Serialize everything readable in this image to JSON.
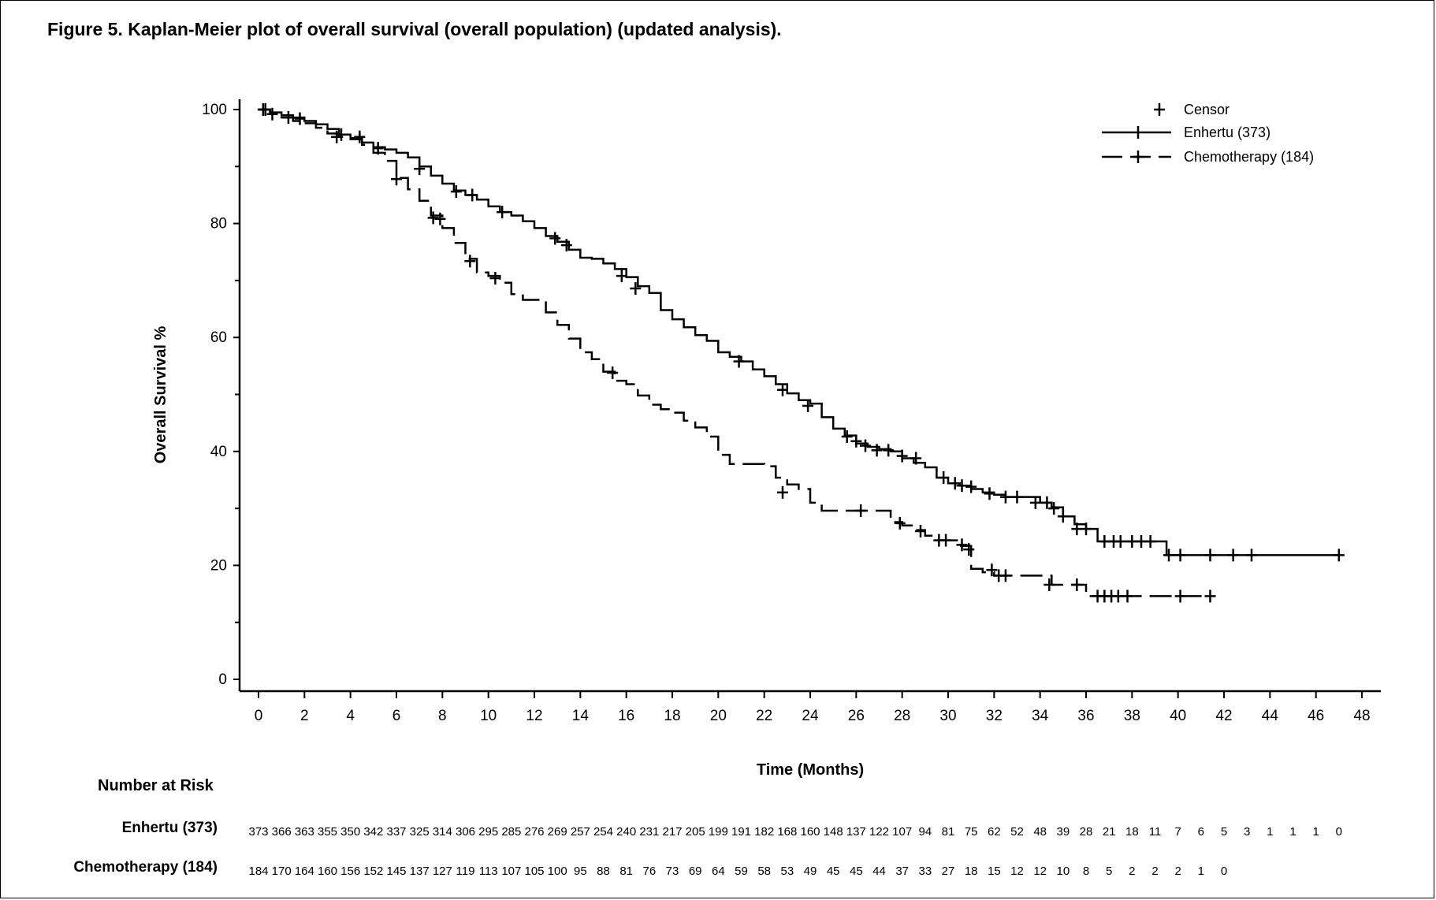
{
  "figure_title": "Figure 5. Kaplan-Meier plot of overall survival (overall population) (updated analysis).",
  "risk_table": {
    "header": "Number at Risk",
    "rows": [
      {
        "label": "Enhertu (373)",
        "values": [
          "373",
          "366",
          "363",
          "355",
          "350",
          "342",
          "337",
          "325",
          "314",
          "306",
          "295",
          "285",
          "276",
          "269",
          "257",
          "254",
          "240",
          "231",
          "217",
          "205",
          "199",
          "191",
          "182",
          "168",
          "160",
          "148",
          "137",
          "122",
          "107",
          "94",
          "81",
          "75",
          "62",
          "52",
          "48",
          "39",
          "28",
          "21",
          "18",
          "11",
          "7",
          "6",
          "5",
          "3",
          "1",
          "1",
          "1",
          "0"
        ]
      },
      {
        "label": "Chemotherapy (184)",
        "values": [
          "184",
          "170",
          "164",
          "160",
          "156",
          "152",
          "145",
          "137",
          "127",
          "119",
          "113",
          "107",
          "105",
          "100",
          "95",
          "88",
          "81",
          "76",
          "73",
          "69",
          "64",
          "59",
          "58",
          "53",
          "49",
          "45",
          "45",
          "44",
          "37",
          "33",
          "27",
          "18",
          "15",
          "12",
          "12",
          "10",
          "8",
          "5",
          "2",
          "2",
          "2",
          "1",
          "0"
        ]
      }
    ]
  },
  "chart_data": {
    "type": "line",
    "subtype": "kaplan-meier step plot",
    "title": "Figure 5. Kaplan-Meier plot of overall survival (overall population) (updated analysis).",
    "xlabel": "Time (Months)",
    "ylabel": "Overall Survival %",
    "xlim": [
      0,
      48
    ],
    "ylim": [
      0,
      100
    ],
    "x_ticks": [
      0,
      2,
      4,
      6,
      8,
      10,
      12,
      14,
      16,
      18,
      20,
      22,
      24,
      26,
      28,
      30,
      32,
      34,
      36,
      38,
      40,
      42,
      44,
      46,
      48
    ],
    "y_ticks": [
      0,
      20,
      40,
      60,
      80,
      100
    ],
    "y_minor_ticks": [
      10,
      30,
      50,
      70,
      90
    ],
    "grid": false,
    "legend": {
      "position": "top-right",
      "entries": [
        {
          "label": "Censor",
          "style": "marker"
        },
        {
          "label": "Enhertu (373)",
          "style": "solid"
        },
        {
          "label": "Chemotherapy (184)",
          "style": "dashed"
        }
      ]
    },
    "series": [
      {
        "name": "Enhertu (373)",
        "style": "solid",
        "points": [
          [
            0,
            100
          ],
          [
            0.5,
            99.5
          ],
          [
            1,
            99
          ],
          [
            1.5,
            98.6
          ],
          [
            2,
            98
          ],
          [
            2.5,
            97.4
          ],
          [
            3,
            96.6
          ],
          [
            3.5,
            95.6
          ],
          [
            4,
            95
          ],
          [
            4.5,
            94.2
          ],
          [
            5,
            93.4
          ],
          [
            5.5,
            93
          ],
          [
            6,
            92.4
          ],
          [
            6.5,
            91.6
          ],
          [
            7,
            90
          ],
          [
            7.5,
            88.4
          ],
          [
            8,
            87
          ],
          [
            8.5,
            85.8
          ],
          [
            9,
            85
          ],
          [
            9.5,
            84.2
          ],
          [
            10,
            83
          ],
          [
            10.5,
            82
          ],
          [
            11,
            81.4
          ],
          [
            11.5,
            80.4
          ],
          [
            12,
            79.2
          ],
          [
            12.5,
            77.8
          ],
          [
            13,
            76.8
          ],
          [
            13.5,
            75.4
          ],
          [
            14,
            74
          ],
          [
            14.5,
            73.8
          ],
          [
            15,
            73
          ],
          [
            15.5,
            72
          ],
          [
            16,
            70.6
          ],
          [
            16.5,
            69
          ],
          [
            17,
            67.8
          ],
          [
            17.5,
            64.8
          ],
          [
            18,
            63.2
          ],
          [
            18.5,
            61.8
          ],
          [
            19,
            60.4
          ],
          [
            19.5,
            59.4
          ],
          [
            20,
            57.4
          ],
          [
            20.5,
            56.6
          ],
          [
            21,
            55.8
          ],
          [
            21.5,
            54.4
          ],
          [
            22,
            53.2
          ],
          [
            22.5,
            51.8
          ],
          [
            23,
            50.2
          ],
          [
            23.5,
            49
          ],
          [
            24,
            48.4
          ],
          [
            24.5,
            46
          ],
          [
            25,
            44
          ],
          [
            25.5,
            42.8
          ],
          [
            26,
            41.4
          ],
          [
            26.5,
            40.8
          ],
          [
            27,
            40.4
          ],
          [
            27.5,
            40
          ],
          [
            28,
            38.8
          ],
          [
            28.5,
            38
          ],
          [
            29,
            37.2
          ],
          [
            29.5,
            35.4
          ],
          [
            30,
            34.4
          ],
          [
            30.5,
            34
          ],
          [
            31,
            33.4
          ],
          [
            31.5,
            32.8
          ],
          [
            32,
            32.4
          ],
          [
            32.5,
            32
          ],
          [
            33,
            32
          ],
          [
            33.5,
            32
          ],
          [
            34,
            31
          ],
          [
            34.5,
            30.2
          ],
          [
            35,
            28.6
          ],
          [
            35.5,
            27.2
          ],
          [
            36,
            26.4
          ],
          [
            36.5,
            24.2
          ],
          [
            37,
            24.2
          ],
          [
            38,
            24.2
          ],
          [
            39,
            24.2
          ],
          [
            39.5,
            21.8
          ],
          [
            40,
            21.8
          ],
          [
            42,
            21.8
          ],
          [
            44,
            21.8
          ],
          [
            46,
            21.8
          ],
          [
            47,
            21.8
          ]
        ],
        "censored": [
          [
            0.2,
            100
          ],
          [
            0.6,
            99.2
          ],
          [
            1.3,
            98.6
          ],
          [
            1.8,
            98.4
          ],
          [
            3.6,
            95.6
          ],
          [
            4.4,
            95.2
          ],
          [
            5.2,
            93.2
          ],
          [
            7,
            89.6
          ],
          [
            8.6,
            85.6
          ],
          [
            9.3,
            85
          ],
          [
            10.6,
            82
          ],
          [
            12.9,
            77.4
          ],
          [
            13.4,
            76.2
          ],
          [
            15.8,
            70.8
          ],
          [
            16.4,
            68.6
          ],
          [
            20.9,
            55.8
          ],
          [
            22.8,
            50.8
          ],
          [
            23.9,
            48
          ],
          [
            25.6,
            42.6
          ],
          [
            26,
            41.8
          ],
          [
            26.4,
            41
          ],
          [
            26.9,
            40.2
          ],
          [
            27.4,
            40.2
          ],
          [
            28,
            39.2
          ],
          [
            28.6,
            38.8
          ],
          [
            29.8,
            35.4
          ],
          [
            30.3,
            34.4
          ],
          [
            30.6,
            34
          ],
          [
            31,
            33.8
          ],
          [
            31.8,
            32.6
          ],
          [
            32.5,
            32
          ],
          [
            33,
            32
          ],
          [
            33.8,
            31
          ],
          [
            34.3,
            31
          ],
          [
            34.6,
            30
          ],
          [
            35,
            28.6
          ],
          [
            35.6,
            26.4
          ],
          [
            36,
            26.4
          ],
          [
            36.8,
            24.2
          ],
          [
            37.2,
            24.2
          ],
          [
            37.5,
            24.2
          ],
          [
            38,
            24.2
          ],
          [
            38.4,
            24.2
          ],
          [
            38.8,
            24.2
          ],
          [
            39.6,
            21.8
          ],
          [
            40.1,
            21.8
          ],
          [
            41.4,
            21.8
          ],
          [
            42.4,
            21.8
          ],
          [
            43.2,
            21.8
          ],
          [
            47,
            21.8
          ]
        ]
      },
      {
        "name": "Chemotherapy (184)",
        "style": "dashed",
        "points": [
          [
            0,
            100
          ],
          [
            0.5,
            99.4
          ],
          [
            1,
            98.6
          ],
          [
            1.5,
            98
          ],
          [
            2,
            97.6
          ],
          [
            2.5,
            96.8
          ],
          [
            3,
            95.8
          ],
          [
            3.5,
            95.2
          ],
          [
            4,
            94.8
          ],
          [
            4.5,
            93.8
          ],
          [
            5,
            92.4
          ],
          [
            5.5,
            91
          ],
          [
            6,
            88
          ],
          [
            6.5,
            86
          ],
          [
            7,
            84
          ],
          [
            7.5,
            81.4
          ],
          [
            8,
            79.2
          ],
          [
            8.5,
            76.6
          ],
          [
            9,
            73.8
          ],
          [
            9.5,
            71.4
          ],
          [
            10,
            70.8
          ],
          [
            10.5,
            69.6
          ],
          [
            11,
            67.6
          ],
          [
            11.5,
            66.6
          ],
          [
            12,
            66.6
          ],
          [
            12.5,
            64.4
          ],
          [
            13,
            62.2
          ],
          [
            13.5,
            59.8
          ],
          [
            14,
            57.4
          ],
          [
            14.5,
            56.2
          ],
          [
            15,
            54
          ],
          [
            15.5,
            52.4
          ],
          [
            16,
            51.8
          ],
          [
            16.5,
            49.8
          ],
          [
            17,
            48.2
          ],
          [
            17.5,
            47.4
          ],
          [
            18,
            46.8
          ],
          [
            18.5,
            45.4
          ],
          [
            19,
            44.2
          ],
          [
            19.5,
            42.6
          ],
          [
            20,
            39.4
          ],
          [
            20.5,
            37.8
          ],
          [
            21,
            37.8
          ],
          [
            22,
            37.4
          ],
          [
            22.5,
            35.4
          ],
          [
            23,
            34.2
          ],
          [
            23.5,
            33.4
          ],
          [
            24,
            31
          ],
          [
            24.5,
            29.6
          ],
          [
            25,
            29.6
          ],
          [
            26,
            29.6
          ],
          [
            27,
            29.6
          ],
          [
            27.5,
            27.6
          ],
          [
            28,
            27
          ],
          [
            28.5,
            26.2
          ],
          [
            29,
            25.2
          ],
          [
            29.5,
            24.4
          ],
          [
            30,
            24.4
          ],
          [
            30.5,
            23.4
          ],
          [
            31,
            19.4
          ],
          [
            31.5,
            18.8
          ],
          [
            32,
            18.2
          ],
          [
            33,
            18.2
          ],
          [
            34,
            18.2
          ],
          [
            34.5,
            16.6
          ],
          [
            35,
            16.6
          ],
          [
            36,
            14.6
          ],
          [
            37,
            14.6
          ],
          [
            38,
            14.6
          ],
          [
            39,
            14.6
          ],
          [
            40,
            14.6
          ],
          [
            41.4,
            14.6
          ]
        ],
        "censored": [
          [
            0.3,
            100
          ],
          [
            3.4,
            95.2
          ],
          [
            6,
            87.8
          ],
          [
            7.6,
            81
          ],
          [
            7.9,
            80.8
          ],
          [
            9.2,
            73.4
          ],
          [
            10.3,
            70.4
          ],
          [
            15.4,
            53.8
          ],
          [
            22.8,
            32.8
          ],
          [
            26.2,
            29.6
          ],
          [
            27.9,
            27.4
          ],
          [
            28.8,
            26
          ],
          [
            29.6,
            24.4
          ],
          [
            29.9,
            24.4
          ],
          [
            30.6,
            23.6
          ],
          [
            30.9,
            22.8
          ],
          [
            31.9,
            19.2
          ],
          [
            32.2,
            18.2
          ],
          [
            32.5,
            18.2
          ],
          [
            34.4,
            16.6
          ],
          [
            35.6,
            16.6
          ],
          [
            36.5,
            14.6
          ],
          [
            36.8,
            14.6
          ],
          [
            37.1,
            14.6
          ],
          [
            37.4,
            14.6
          ],
          [
            37.8,
            14.6
          ],
          [
            40.1,
            14.6
          ],
          [
            41.4,
            14.6
          ]
        ]
      }
    ]
  }
}
